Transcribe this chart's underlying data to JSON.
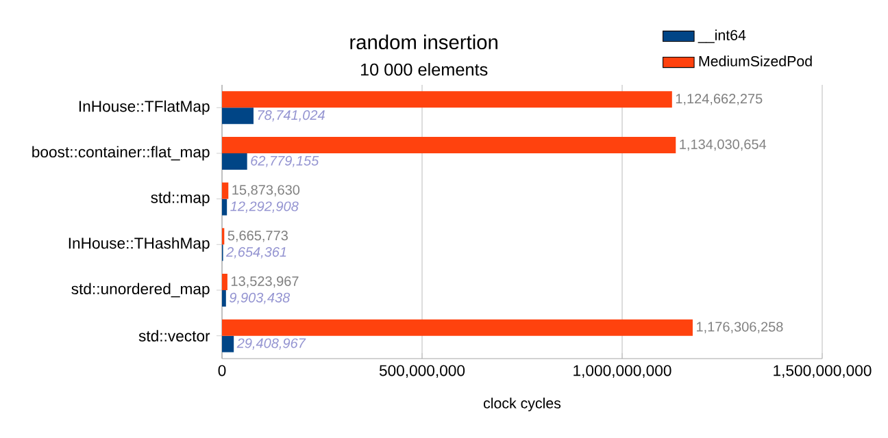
{
  "chart_data": {
    "type": "bar",
    "orientation": "horizontal",
    "title": "random insertion",
    "subtitle": "10 000 elements",
    "xlabel": "clock cycles",
    "categories": [
      "InHouse::TFlatMap",
      "boost::container::flat_map",
      "std::map",
      "InHouse::THashMap",
      "std::unordered_map",
      "std::vector"
    ],
    "series": [
      {
        "name": "__int64",
        "color": "#004586",
        "values": [
          78741024,
          62779155,
          12292908,
          2654361,
          9903438,
          29408967
        ],
        "value_labels": [
          "78,741,024",
          "62,779,155",
          "12,292,908",
          "2,654,361",
          "9,903,438",
          "29,408,967"
        ]
      },
      {
        "name": "MediumSizedPod",
        "color": "#ff420e",
        "values": [
          1124662275,
          1134030654,
          15873630,
          5665773,
          13523967,
          1176306258
        ],
        "value_labels": [
          "1,124,662,275",
          "1,134,030,654",
          "15,873,630",
          "5,665,773",
          "13,523,967",
          "1,176,306,258"
        ]
      }
    ],
    "xlim": [
      0,
      1500000000
    ],
    "xticks": [
      0,
      {
        "value": 500000000,
        "label": "500,000,000"
      },
      {
        "value": 1000000000,
        "label": "1,000,000,000"
      },
      {
        "value": 1500000000,
        "label": "1,500,000,000"
      }
    ],
    "grid": "x",
    "legend": "top right"
  }
}
